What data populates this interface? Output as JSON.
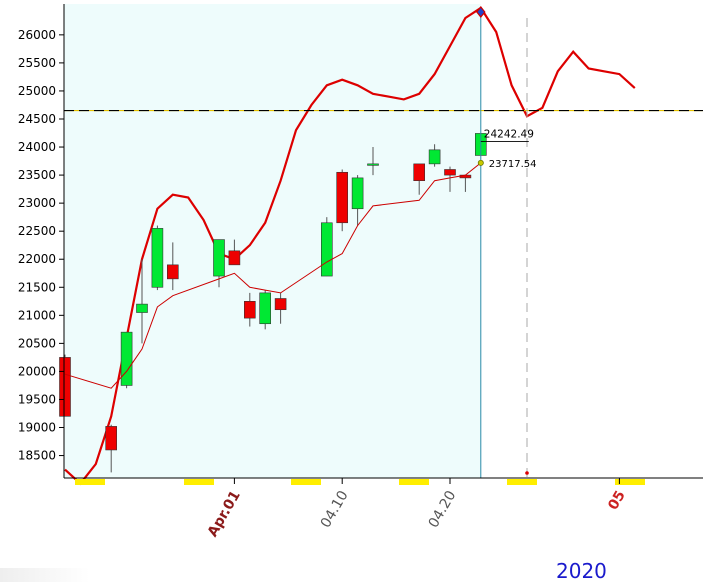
{
  "chart_data": {
    "type": "candlestick",
    "year_label": "2020",
    "ylim": [
      18100,
      26550
    ],
    "yticks": [
      18500,
      19000,
      19500,
      20000,
      20500,
      21000,
      21500,
      22000,
      22500,
      23000,
      23500,
      24000,
      24500,
      25000,
      25500,
      26000
    ],
    "xticks": [
      {
        "label": "Apr.01",
        "index": 11,
        "color": "#8b1a1a",
        "bold": true
      },
      {
        "label": "04.10",
        "index": 18,
        "color": "#555555",
        "bold": false
      },
      {
        "label": "04.20",
        "index": 25,
        "color": "#555555",
        "bold": false
      },
      {
        "label": "05",
        "index": 36,
        "color": "#cc2222",
        "bold": true
      }
    ],
    "candles": [
      {
        "o": 20250,
        "h": 20300,
        "l": 19200,
        "c": 19200
      },
      null,
      null,
      {
        "o": 19020,
        "h": 19050,
        "l": 18200,
        "c": 18600
      },
      {
        "o": 19750,
        "h": 20700,
        "l": 19700,
        "c": 20700
      },
      {
        "o": 21050,
        "h": 22000,
        "l": 20500,
        "c": 21200
      },
      {
        "o": 21500,
        "h": 22600,
        "l": 21450,
        "c": 22550
      },
      {
        "o": 21900,
        "h": 22300,
        "l": 21450,
        "c": 21650
      },
      null,
      null,
      {
        "o": 21700,
        "h": 22350,
        "l": 21500,
        "c": 22350
      },
      {
        "o": 22150,
        "h": 22350,
        "l": 21900,
        "c": 21900
      },
      {
        "o": 21250,
        "h": 21400,
        "l": 20800,
        "c": 20950
      },
      {
        "o": 20850,
        "h": 21450,
        "l": 20750,
        "c": 21400
      },
      {
        "o": 21300,
        "h": 21400,
        "l": 20850,
        "c": 21100
      },
      null,
      null,
      {
        "o": 21700,
        "h": 22750,
        "l": 21700,
        "c": 22650
      },
      {
        "o": 23550,
        "h": 23600,
        "l": 22500,
        "c": 22650
      },
      {
        "o": 22900,
        "h": 23500,
        "l": 22600,
        "c": 23450
      },
      {
        "o": 23700,
        "h": 24000,
        "l": 23500,
        "c": 23700
      },
      null,
      null,
      {
        "o": 23700,
        "h": 23700,
        "l": 23150,
        "c": 23400
      },
      {
        "o": 23700,
        "h": 24050,
        "l": 23650,
        "c": 23950
      },
      {
        "o": 23600,
        "h": 23650,
        "l": 23200,
        "c": 23500
      },
      {
        "o": 23500,
        "h": 23500,
        "l": 23200,
        "c": 23450
      },
      {
        "o": 23850,
        "h": 24250,
        "l": 23850,
        "c": 24242.49
      }
    ],
    "ma_short": [
      19950,
      null,
      null,
      19700,
      20000,
      20400,
      21150,
      21350,
      null,
      null,
      21650,
      21750,
      21500,
      21450,
      21400,
      null,
      null,
      21950,
      22100,
      22600,
      22950,
      null,
      null,
      23050,
      23400,
      23450,
      23500,
      23717.54
    ],
    "ma_long": [
      {
        "i": 0,
        "v": 18250
      },
      {
        "i": 1,
        "v": 18000
      },
      {
        "i": 2,
        "v": 18350
      },
      {
        "i": 3,
        "v": 19200
      },
      {
        "i": 4,
        "v": 20600
      },
      {
        "i": 5,
        "v": 22000
      },
      {
        "i": 6,
        "v": 22900
      },
      {
        "i": 7,
        "v": 23150
      },
      {
        "i": 8,
        "v": 23100
      },
      {
        "i": 9,
        "v": 22700
      },
      {
        "i": 10,
        "v": 22100
      },
      {
        "i": 11,
        "v": 22000
      },
      {
        "i": 12,
        "v": 22250
      },
      {
        "i": 13,
        "v": 22650
      },
      {
        "i": 14,
        "v": 23400
      },
      {
        "i": 15,
        "v": 24300
      },
      {
        "i": 16,
        "v": 24750
      },
      {
        "i": 17,
        "v": 25100
      },
      {
        "i": 18,
        "v": 25200
      },
      {
        "i": 19,
        "v": 25100
      },
      {
        "i": 20,
        "v": 24950
      },
      {
        "i": 21,
        "v": 24900
      },
      {
        "i": 22,
        "v": 24850
      },
      {
        "i": 23,
        "v": 24950
      },
      {
        "i": 24,
        "v": 25300
      },
      {
        "i": 25,
        "v": 25800
      },
      {
        "i": 26,
        "v": 26300
      },
      {
        "i": 27,
        "v": 26480
      },
      {
        "i": 28,
        "v": 26050
      },
      {
        "i": 29,
        "v": 25100
      },
      {
        "i": 30,
        "v": 24550
      },
      {
        "i": 31,
        "v": 24700
      },
      {
        "i": 32,
        "v": 25350
      },
      {
        "i": 33,
        "v": 25700
      },
      {
        "i": 34,
        "v": 25400
      },
      {
        "i": 35,
        "v": 25350
      },
      {
        "i": 36,
        "v": 25300
      },
      {
        "i": 37,
        "v": 25050
      }
    ],
    "reference_line": 24650,
    "current_index": 27,
    "projection_index": 30,
    "last_close_label": "24242.49",
    "last_ma_label": "23717.54",
    "colors": {
      "up": "#00e833",
      "down": "#ee0000",
      "ma_long": "#dd0000",
      "ma_short": "#cc0000",
      "shade": "#eefcfc",
      "current_line": "#2a8aa8",
      "reference": "#000000",
      "reference_alt": "#e6c200",
      "marker_fill": "#2244cc",
      "marker_edge": "#cc0000",
      "axis_highlight": "#ffee00"
    }
  }
}
